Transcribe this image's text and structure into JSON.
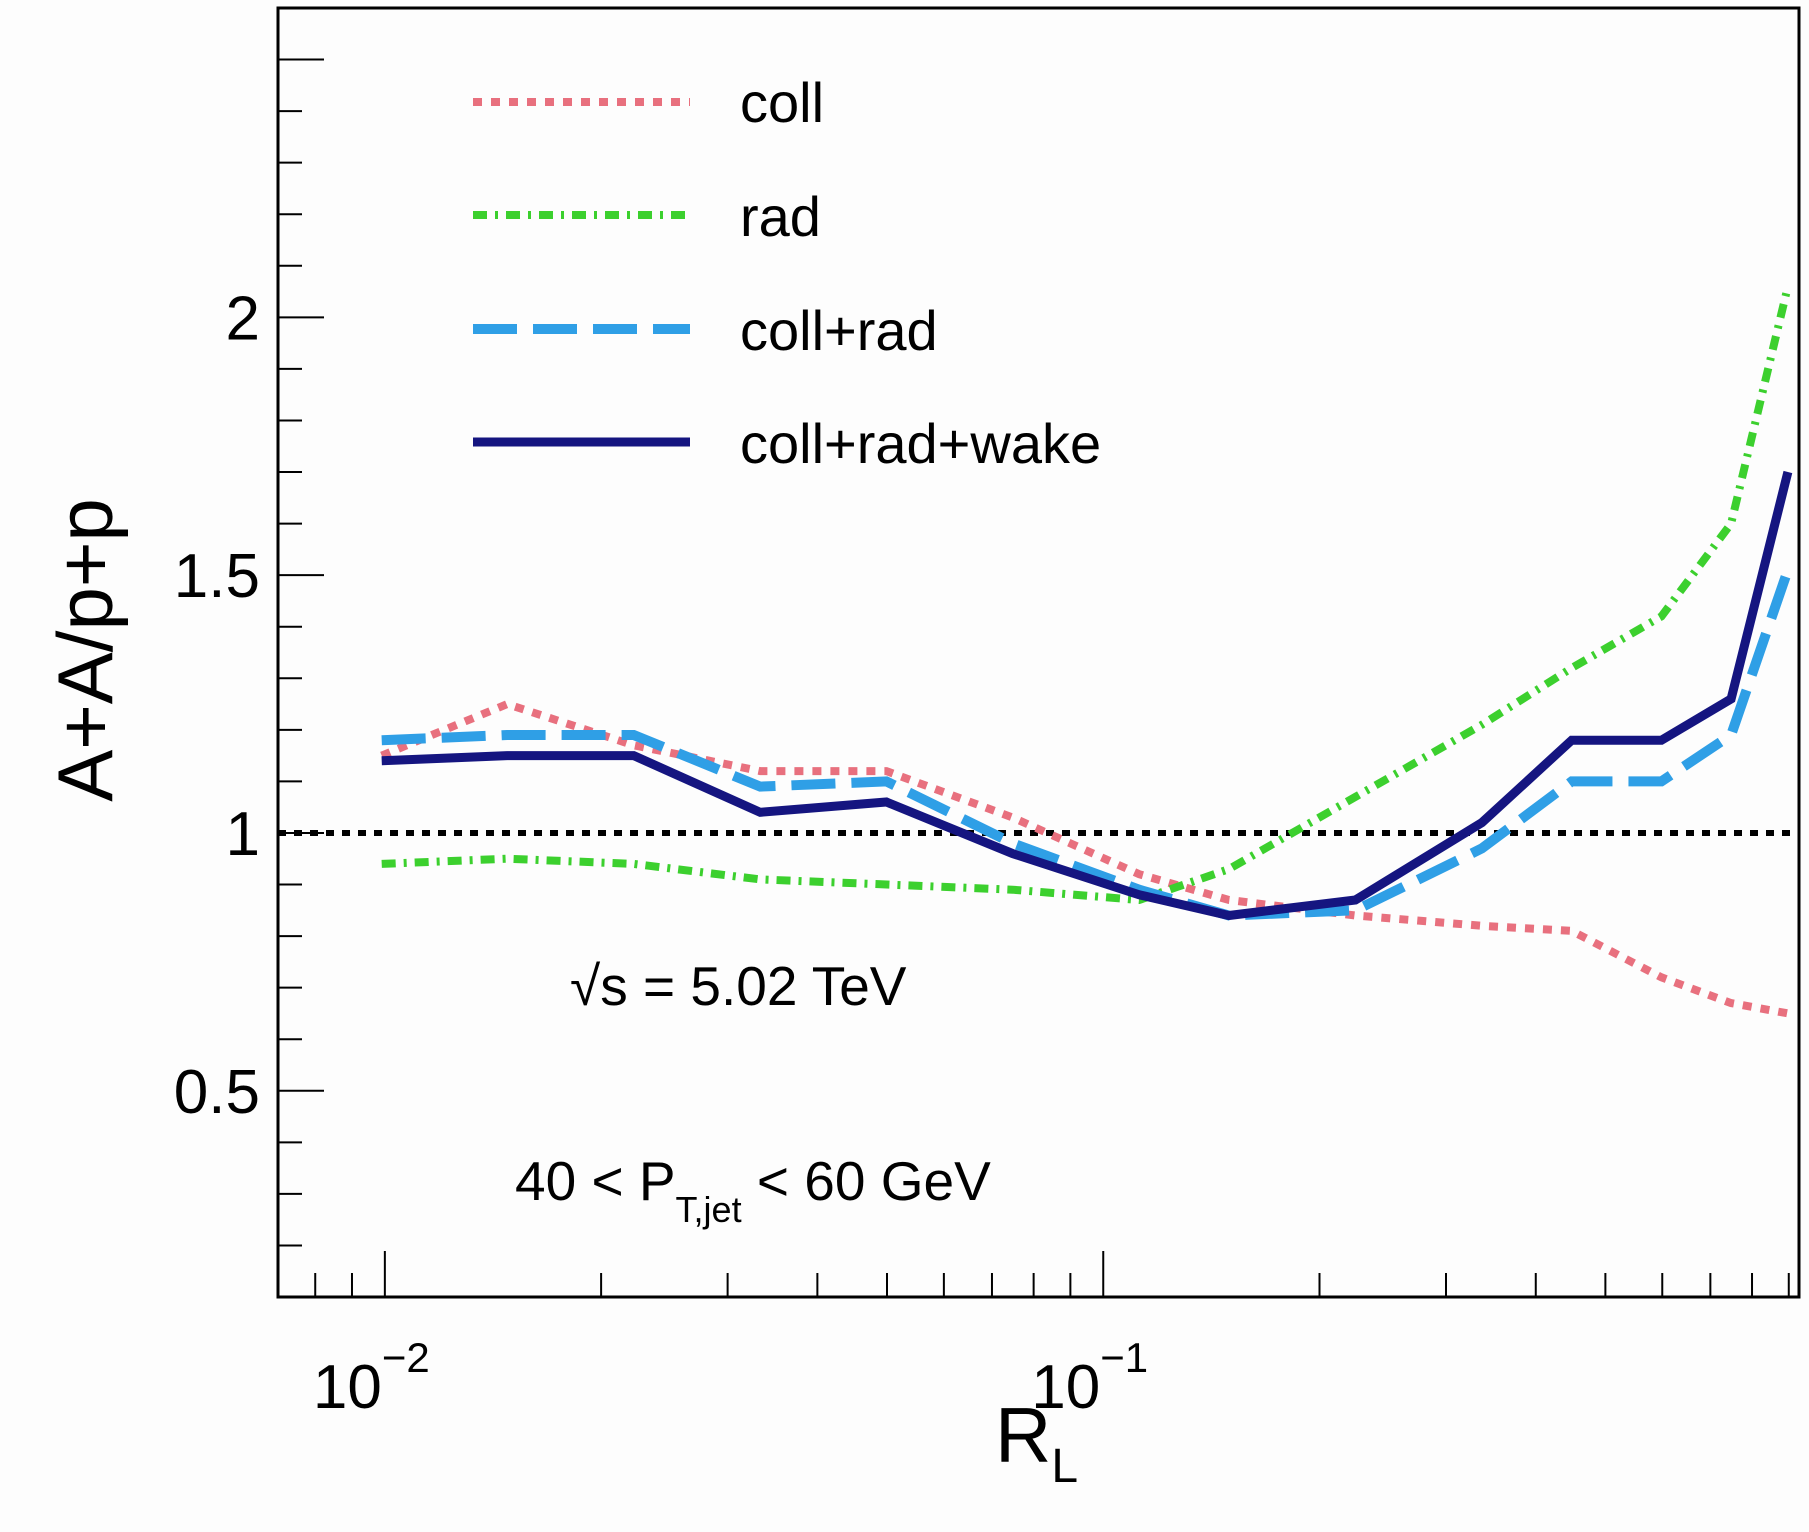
{
  "chart_data": {
    "type": "line",
    "xlabel": "R",
    "xlabel_sub": "L",
    "ylabel": "A+A/p+p",
    "x_scale": "log",
    "xlim": [
      0.0071,
      0.93
    ],
    "ylim": [
      0.1,
      2.6
    ],
    "x_ticks": [
      {
        "value": 0.01,
        "base": "10",
        "exp": "−2"
      },
      {
        "value": 0.1,
        "base": "10",
        "exp": "−1"
      }
    ],
    "y_ticks": [
      {
        "value": 0.5,
        "label": "0.5"
      },
      {
        "value": 1.0,
        "label": "1"
      },
      {
        "value": 1.5,
        "label": "1.5"
      },
      {
        "value": 2.0,
        "label": "2"
      }
    ],
    "reference_line": {
      "y": 1.0,
      "color": "#000000",
      "style": "dotted"
    },
    "legend_position": "top-left",
    "series": [
      {
        "name": "coll",
        "color": "#e8707e",
        "style": "dotted",
        "x": [
          0.0099,
          0.0148,
          0.0222,
          0.0333,
          0.0499,
          0.0748,
          0.1122,
          0.1496,
          0.2244,
          0.3366,
          0.4488,
          0.5984,
          0.748,
          0.8976
        ],
        "y": [
          1.15,
          1.25,
          1.17,
          1.12,
          1.12,
          1.03,
          0.92,
          0.87,
          0.84,
          0.82,
          0.81,
          0.72,
          0.67,
          0.65
        ]
      },
      {
        "name": "rad",
        "color": "#3cd02e",
        "style": "dashdot",
        "x": [
          0.0099,
          0.0148,
          0.0222,
          0.0333,
          0.0499,
          0.0748,
          0.1122,
          0.1496,
          0.2244,
          0.3366,
          0.4488,
          0.5984,
          0.748,
          0.8976
        ],
        "y": [
          0.94,
          0.95,
          0.94,
          0.91,
          0.9,
          0.89,
          0.87,
          0.93,
          1.07,
          1.21,
          1.32,
          1.42,
          1.6,
          2.06
        ]
      },
      {
        "name": "coll+rad",
        "color": "#2f9fe6",
        "style": "dashed",
        "x": [
          0.0099,
          0.0148,
          0.0222,
          0.0333,
          0.0499,
          0.0748,
          0.1122,
          0.1496,
          0.2244,
          0.3366,
          0.4488,
          0.5984,
          0.748,
          0.8976
        ],
        "y": [
          1.18,
          1.19,
          1.19,
          1.09,
          1.1,
          0.98,
          0.89,
          0.84,
          0.85,
          0.97,
          1.1,
          1.1,
          1.19,
          1.51
        ]
      },
      {
        "name": "coll+rad+wake",
        "color": "#151580",
        "style": "solid",
        "x": [
          0.0099,
          0.0148,
          0.0222,
          0.0333,
          0.0499,
          0.0748,
          0.1122,
          0.1496,
          0.2244,
          0.3366,
          0.4488,
          0.5984,
          0.748,
          0.8976
        ],
        "y": [
          1.14,
          1.15,
          1.15,
          1.04,
          1.06,
          0.96,
          0.88,
          0.84,
          0.87,
          1.02,
          1.18,
          1.18,
          1.26,
          1.7
        ]
      }
    ],
    "annotations": {
      "energy": {
        "pre": "√",
        "main": "s = 5.02 TeV"
      },
      "pt": {
        "pre": "40 < P",
        "sub": "T,jet",
        "post": " < 60 GeV"
      }
    }
  }
}
